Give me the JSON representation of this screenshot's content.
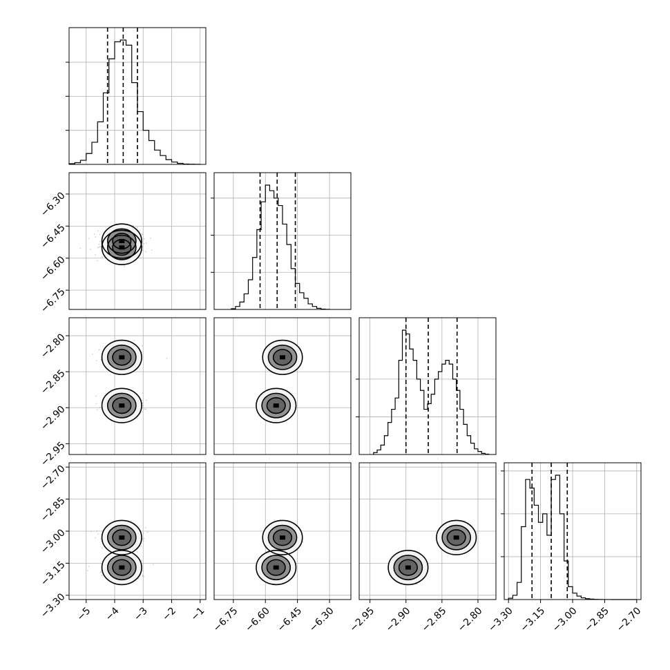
{
  "chart_data": {
    "type": "corner",
    "grid": true,
    "parameters": [
      {
        "range": [
          -5.6,
          -0.8
        ],
        "ticks": [
          -5,
          -4,
          -3,
          -2,
          -1
        ],
        "tick_labels": [
          "−5",
          "−4",
          "−3",
          "−2",
          "−1"
        ]
      },
      {
        "range": [
          -6.84,
          -6.2
        ],
        "ticks": [
          -6.75,
          -6.6,
          -6.45,
          -6.3
        ],
        "tick_labels": [
          "−6.75",
          "−6.60",
          "−6.45",
          "−6.30"
        ]
      },
      {
        "range": [
          -2.965,
          -2.775
        ],
        "ticks": [
          -2.95,
          -2.9,
          -2.85,
          -2.8
        ],
        "tick_labels": [
          "−2.95",
          "−2.90",
          "−2.85",
          "−2.80"
        ]
      },
      {
        "range": [
          -3.32,
          -2.68
        ],
        "ticks": [
          -3.3,
          -3.15,
          -3.0,
          -2.85,
          -2.7
        ],
        "tick_labels": [
          "−3.30",
          "−3.15",
          "−3.00",
          "−2.85",
          "−2.70"
        ]
      }
    ],
    "histograms": [
      {
        "bins": [
          -5.6,
          -5.4,
          -5.2,
          -5.0,
          -4.8,
          -4.6,
          -4.4,
          -4.2,
          -4.0,
          -3.8,
          -3.6,
          -3.4,
          -3.2,
          -3.0,
          -2.8,
          -2.6,
          -2.4,
          -2.2,
          -2.0,
          -1.8,
          -1.6,
          -1.4,
          -1.2,
          -1.0
        ],
        "counts": [
          0.2,
          0.5,
          1.2,
          3.2,
          6.5,
          12.5,
          21.0,
          31.0,
          36.0,
          36.5,
          35.0,
          24.0,
          15.5,
          10.0,
          7.0,
          4.2,
          2.6,
          1.4,
          0.7,
          0.3,
          0.1,
          0.05,
          0.02
        ],
        "quantiles": [
          -4.25,
          -3.7,
          -3.2
        ],
        "yticks": [
          10,
          20,
          30
        ]
      },
      {
        "bins": [
          -6.76,
          -6.74,
          -6.72,
          -6.7,
          -6.68,
          -6.66,
          -6.64,
          -6.62,
          -6.6,
          -6.58,
          -6.56,
          -6.54,
          -6.52,
          -6.5,
          -6.48,
          -6.46,
          -6.44,
          -6.42,
          -6.4,
          -6.38,
          -6.36,
          -6.34,
          -6.32,
          -6.3
        ],
        "counts": [
          0.2,
          0.8,
          2.0,
          4.2,
          8.0,
          14.0,
          21.5,
          29.0,
          33.5,
          32.0,
          30.0,
          28.0,
          23.0,
          17.5,
          11.0,
          7.0,
          4.5,
          3.0,
          1.5,
          0.8,
          0.3,
          0.1,
          0.03
        ],
        "quantiles": [
          -6.625,
          -6.545,
          -6.46
        ],
        "yticks": [
          10,
          20,
          30
        ]
      },
      {
        "bins": [
          -2.945,
          -2.94,
          -2.935,
          -2.93,
          -2.925,
          -2.92,
          -2.915,
          -2.91,
          -2.905,
          -2.9,
          -2.895,
          -2.89,
          -2.885,
          -2.88,
          -2.875,
          -2.87,
          -2.865,
          -2.86,
          -2.855,
          -2.85,
          -2.845,
          -2.84,
          -2.835,
          -2.83,
          -2.825,
          -2.82,
          -2.815,
          -2.81,
          -2.805,
          -2.8,
          -2.795,
          -2.79,
          -2.785
        ],
        "counts": [
          0.5,
          1.2,
          2.5,
          5.0,
          8.5,
          12.0,
          15.0,
          25.0,
          33.0,
          32.0,
          28.0,
          25.0,
          20.0,
          17.0,
          12.0,
          13.5,
          16.0,
          20.0,
          22.0,
          24.0,
          25.0,
          24.0,
          20.0,
          17.0,
          12.0,
          8.0,
          5.0,
          3.0,
          1.5,
          0.8,
          0.3,
          0.1
        ],
        "quantiles": [
          -2.9,
          -2.869,
          -2.829
        ],
        "yticks": [
          10,
          20
        ]
      },
      {
        "bins": [
          -3.3,
          -3.28,
          -3.26,
          -3.24,
          -3.22,
          -3.2,
          -3.18,
          -3.16,
          -3.14,
          -3.12,
          -3.1,
          -3.08,
          -3.06,
          -3.04,
          -3.02,
          -3.0,
          -2.98,
          -2.96,
          -2.94,
          -2.92,
          -2.9,
          -2.88,
          -2.86,
          -2.84,
          -2.82,
          -2.8,
          -2.78,
          -2.76,
          -2.74,
          -2.72,
          -2.7
        ],
        "counts": [
          0.3,
          1.0,
          4.0,
          17.0,
          28.0,
          26.0,
          22.0,
          18.0,
          20.0,
          15.0,
          28.0,
          29.0,
          20.0,
          9.0,
          3.0,
          1.5,
          0.8,
          0.4,
          0.2,
          0.1,
          0.05,
          0.02,
          0.01,
          0.01,
          0.0,
          0.0,
          0.0,
          0.0,
          0.0,
          0.0
        ],
        "quantiles": [
          -3.19,
          -3.1,
          -3.025
        ],
        "yticks": [
          10,
          20,
          30
        ]
      }
    ],
    "joint_modes": [
      [
        -3.75,
        -6.55,
        -2.897,
        -3.17
      ],
      [
        -3.75,
        -6.52,
        -2.83,
        -3.03
      ]
    ]
  }
}
